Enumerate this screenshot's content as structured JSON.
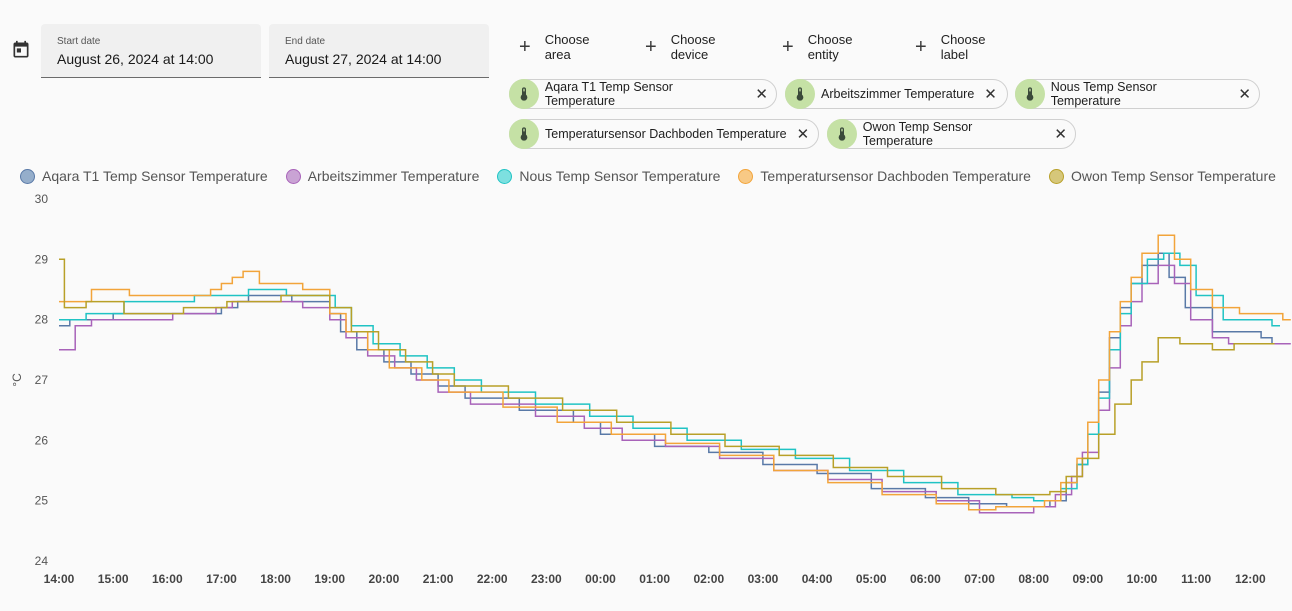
{
  "date_range": {
    "start_label": "Start date",
    "start_value": "August 26, 2024 at 14:00",
    "end_label": "End date",
    "end_value": "August 27, 2024 at 14:00",
    "icon": "calendar-icon"
  },
  "target_picker": {
    "add_buttons": [
      {
        "label": "Choose area",
        "color": "#fdd5a6",
        "icon": "plus-icon"
      },
      {
        "label": "Choose device",
        "color": "#b3e0f8",
        "icon": "plus-icon"
      },
      {
        "label": "Choose entity",
        "color": "#d4e8c2",
        "icon": "plus-icon"
      },
      {
        "label": "Choose label",
        "color": "#e0e0e0",
        "icon": "plus-icon"
      }
    ],
    "entities": [
      {
        "label": "Aqara T1 Temp Sensor Temperature",
        "icon": "thermometer-icon"
      },
      {
        "label": "Arbeitszimmer Temperature",
        "icon": "thermometer-icon"
      },
      {
        "label": "Nous Temp Sensor Temperature",
        "icon": "thermometer-icon"
      },
      {
        "label": "Temperatursensor Dachboden Temperature",
        "icon": "thermometer-icon"
      },
      {
        "label": "Owon Temp Sensor Temperature",
        "icon": "thermometer-icon"
      }
    ],
    "remove_icon": "close-icon"
  },
  "chart_data": {
    "type": "line",
    "step": true,
    "ylabel": "°C",
    "ylim": [
      24,
      30
    ],
    "yticks": [
      "24",
      "25",
      "26",
      "27",
      "28",
      "29",
      "30"
    ],
    "xticks": [
      "14:00",
      "15:00",
      "16:00",
      "17:00",
      "18:00",
      "19:00",
      "20:00",
      "21:00",
      "22:00",
      "23:00",
      "00:00",
      "01:00",
      "02:00",
      "03:00",
      "04:00",
      "05:00",
      "06:00",
      "07:00",
      "08:00",
      "09:00",
      "10:00",
      "11:00",
      "12:00"
    ],
    "legend_position": "top",
    "grid": false,
    "series": [
      {
        "name": "Aqara T1 Temp Sensor Temperature",
        "color": "#5979a7",
        "points": [
          [
            0,
            27.9
          ],
          [
            0.2,
            28.0
          ],
          [
            1,
            28.1
          ],
          [
            3,
            28.2
          ],
          [
            3.3,
            28.3
          ],
          [
            3.5,
            28.4
          ],
          [
            4.3,
            28.3
          ],
          [
            5,
            28.1
          ],
          [
            5.2,
            27.8
          ],
          [
            5.5,
            27.5
          ],
          [
            6,
            27.3
          ],
          [
            6.5,
            27.1
          ],
          [
            7,
            26.9
          ],
          [
            7.5,
            26.7
          ],
          [
            8.5,
            26.5
          ],
          [
            9.5,
            26.3
          ],
          [
            10,
            26.1
          ],
          [
            11,
            25.9
          ],
          [
            12,
            25.8
          ],
          [
            13,
            25.6
          ],
          [
            14,
            25.45
          ],
          [
            15,
            25.2
          ],
          [
            16,
            25.05
          ],
          [
            16.8,
            24.95
          ],
          [
            17.5,
            24.9
          ],
          [
            18.3,
            25.0
          ],
          [
            18.6,
            25.3
          ],
          [
            18.8,
            25.6
          ],
          [
            19,
            26.1
          ],
          [
            19.2,
            26.8
          ],
          [
            19.4,
            27.7
          ],
          [
            19.6,
            28.2
          ],
          [
            19.8,
            28.6
          ],
          [
            20,
            28.9
          ],
          [
            20.3,
            29.1
          ],
          [
            20.5,
            28.7
          ],
          [
            20.8,
            28.2
          ],
          [
            21.3,
            27.8
          ],
          [
            22.2,
            27.7
          ],
          [
            22.4,
            27.6
          ]
        ]
      },
      {
        "name": "Arbeitszimmer Temperature",
        "color": "#a863b9",
        "points": [
          [
            0,
            27.5
          ],
          [
            0.3,
            27.9
          ],
          [
            0.6,
            28.0
          ],
          [
            2.1,
            28.1
          ],
          [
            2.9,
            28.2
          ],
          [
            3.2,
            28.3
          ],
          [
            4.5,
            28.2
          ],
          [
            5,
            28.0
          ],
          [
            5.3,
            27.7
          ],
          [
            5.7,
            27.4
          ],
          [
            6.2,
            27.2
          ],
          [
            6.6,
            27.0
          ],
          [
            7,
            26.8
          ],
          [
            7.6,
            26.6
          ],
          [
            8.8,
            26.4
          ],
          [
            9.7,
            26.2
          ],
          [
            10.4,
            26.0
          ],
          [
            11.2,
            25.9
          ],
          [
            12.2,
            25.7
          ],
          [
            13.2,
            25.5
          ],
          [
            14.2,
            25.35
          ],
          [
            15.2,
            25.15
          ],
          [
            16.2,
            25.0
          ],
          [
            17,
            24.8
          ],
          [
            18,
            24.9
          ],
          [
            18.4,
            25.1
          ],
          [
            18.7,
            25.4
          ],
          [
            18.9,
            25.8
          ],
          [
            19.2,
            26.5
          ],
          [
            19.4,
            27.2
          ],
          [
            19.6,
            27.9
          ],
          [
            19.8,
            28.3
          ],
          [
            20,
            28.6
          ],
          [
            20.3,
            28.9
          ],
          [
            20.6,
            28.6
          ],
          [
            20.9,
            28.0
          ],
          [
            21.3,
            27.7
          ],
          [
            21.6,
            27.6
          ],
          [
            22.6,
            27.6
          ]
        ]
      },
      {
        "name": "Nous Temp Sensor Temperature",
        "color": "#20c3c4",
        "points": [
          [
            0,
            28.0
          ],
          [
            0.5,
            28.1
          ],
          [
            1.2,
            28.3
          ],
          [
            2.5,
            28.4
          ],
          [
            3.5,
            28.5
          ],
          [
            4.2,
            28.4
          ],
          [
            5.1,
            28.2
          ],
          [
            5.4,
            27.9
          ],
          [
            5.8,
            27.6
          ],
          [
            6.3,
            27.4
          ],
          [
            6.8,
            27.2
          ],
          [
            7.3,
            27.0
          ],
          [
            7.8,
            26.8
          ],
          [
            8.8,
            26.6
          ],
          [
            9.8,
            26.4
          ],
          [
            10.6,
            26.2
          ],
          [
            11.6,
            26.0
          ],
          [
            12.6,
            25.85
          ],
          [
            13.6,
            25.7
          ],
          [
            14.6,
            25.5
          ],
          [
            15.6,
            25.3
          ],
          [
            16.6,
            25.1
          ],
          [
            17.6,
            25.05
          ],
          [
            18,
            25.0
          ],
          [
            18.5,
            25.2
          ],
          [
            18.8,
            25.6
          ],
          [
            19,
            26.1
          ],
          [
            19.2,
            26.7
          ],
          [
            19.4,
            27.5
          ],
          [
            19.6,
            28.1
          ],
          [
            19.8,
            28.6
          ],
          [
            20.1,
            29.0
          ],
          [
            20.4,
            29.1
          ],
          [
            20.7,
            28.9
          ],
          [
            21,
            28.4
          ],
          [
            21.5,
            28.0
          ],
          [
            22.4,
            27.9
          ]
        ]
      },
      {
        "name": "Temperatursensor Dachboden Temperature",
        "color": "#f2a43a",
        "points": [
          [
            0,
            28.3
          ],
          [
            0.6,
            28.5
          ],
          [
            1.3,
            28.4
          ],
          [
            2.8,
            28.5
          ],
          [
            3,
            28.6
          ],
          [
            3.2,
            28.7
          ],
          [
            3.4,
            28.8
          ],
          [
            3.7,
            28.6
          ],
          [
            4.5,
            28.5
          ],
          [
            5,
            28.1
          ],
          [
            5.3,
            27.8
          ],
          [
            5.7,
            27.5
          ],
          [
            6.1,
            27.2
          ],
          [
            6.7,
            27.0
          ],
          [
            7.2,
            26.8
          ],
          [
            8.2,
            26.55
          ],
          [
            9.2,
            26.3
          ],
          [
            10.2,
            26.1
          ],
          [
            11.2,
            25.95
          ],
          [
            12.2,
            25.75
          ],
          [
            13.2,
            25.5
          ],
          [
            14.2,
            25.3
          ],
          [
            15.2,
            25.1
          ],
          [
            16.2,
            24.95
          ],
          [
            16.8,
            24.85
          ],
          [
            17.3,
            24.9
          ],
          [
            18.2,
            25.0
          ],
          [
            18.5,
            25.3
          ],
          [
            18.8,
            25.7
          ],
          [
            19,
            26.3
          ],
          [
            19.2,
            27.0
          ],
          [
            19.4,
            27.8
          ],
          [
            19.6,
            28.3
          ],
          [
            19.8,
            28.7
          ],
          [
            20,
            29.1
          ],
          [
            20.3,
            29.4
          ],
          [
            20.6,
            29.0
          ],
          [
            20.9,
            28.5
          ],
          [
            21.3,
            28.2
          ],
          [
            21.8,
            28.1
          ],
          [
            22.6,
            28.0
          ]
        ]
      },
      {
        "name": "Owon Temp Sensor Temperature",
        "color": "#b8a028",
        "points": [
          [
            0,
            29.0
          ],
          [
            0.1,
            28.2
          ],
          [
            0.5,
            28.3
          ],
          [
            1.2,
            28.1
          ],
          [
            2.3,
            28.2
          ],
          [
            3.1,
            28.3
          ],
          [
            4.1,
            28.4
          ],
          [
            5,
            28.2
          ],
          [
            5.4,
            27.8
          ],
          [
            5.9,
            27.5
          ],
          [
            6.4,
            27.3
          ],
          [
            6.9,
            27.1
          ],
          [
            7.3,
            26.9
          ],
          [
            8.3,
            26.7
          ],
          [
            9.3,
            26.5
          ],
          [
            10.3,
            26.3
          ],
          [
            11.3,
            26.1
          ],
          [
            12.3,
            25.9
          ],
          [
            13.3,
            25.75
          ],
          [
            14.3,
            25.55
          ],
          [
            15.3,
            25.4
          ],
          [
            16.3,
            25.2
          ],
          [
            17.3,
            25.1
          ],
          [
            18.3,
            25.15
          ],
          [
            18.6,
            25.4
          ],
          [
            18.9,
            25.7
          ],
          [
            19.2,
            26.1
          ],
          [
            19.5,
            26.6
          ],
          [
            19.8,
            27.0
          ],
          [
            20,
            27.3
          ],
          [
            20.3,
            27.7
          ],
          [
            20.7,
            27.6
          ],
          [
            21.3,
            27.5
          ],
          [
            21.7,
            27.6
          ],
          [
            22.3,
            27.6
          ]
        ]
      }
    ]
  }
}
